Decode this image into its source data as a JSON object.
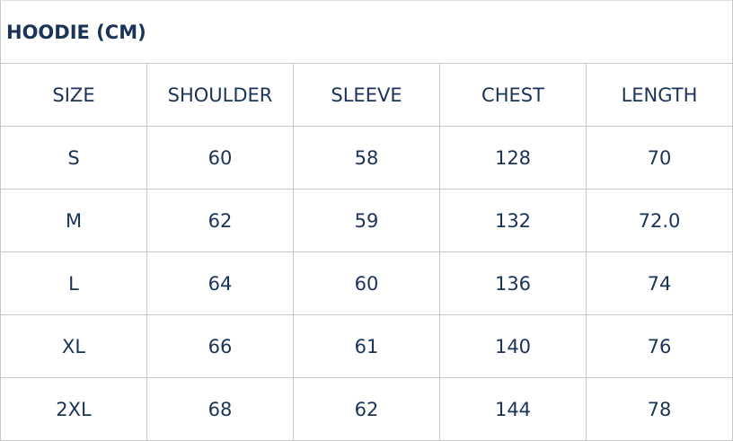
{
  "title": "HOODIE (CM)",
  "headers": [
    "SIZE",
    "SHOULDER",
    "SLEEVE",
    "CHEST",
    "LENGTH"
  ],
  "rows": [
    [
      "S",
      "60",
      "58",
      "128",
      "70"
    ],
    [
      "M",
      "62",
      "59",
      "132",
      "72.0"
    ],
    [
      "L",
      "64",
      "60",
      "136",
      "74"
    ],
    [
      "XL",
      "66",
      "61",
      "140",
      "76"
    ],
    [
      "2XL",
      "68",
      "62",
      "144",
      "78"
    ]
  ],
  "colors": {
    "text": "#1a3358",
    "border": "#c8c8c8"
  }
}
